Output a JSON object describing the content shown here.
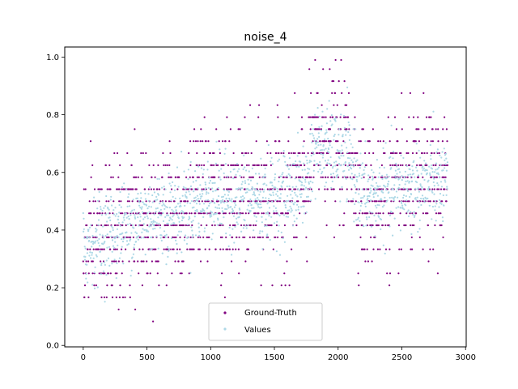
{
  "chart_data": {
    "type": "scatter",
    "title": "noise_4",
    "xlabel": "",
    "ylabel": "",
    "xlim": [
      -145,
      3005
    ],
    "ylim": [
      -0.005,
      1.035
    ],
    "xticks": [
      0,
      500,
      1000,
      1500,
      2000,
      2500,
      3000
    ],
    "xtick_labels": [
      "0",
      "500",
      "1000",
      "1500",
      "2000",
      "2500",
      "3000"
    ],
    "yticks": [
      0.0,
      0.2,
      0.4,
      0.6,
      0.8,
      1.0
    ],
    "ytick_labels": [
      "0.0",
      "0.2",
      "0.4",
      "0.6",
      "0.8",
      "1.0"
    ],
    "grid": false,
    "legend_position": "lower-center",
    "n_points": 2860,
    "series": [
      {
        "name": "Ground-Truth",
        "color": "#800080",
        "trend_x": [
          0,
          100,
          200,
          300,
          400,
          500,
          600,
          700,
          800,
          900,
          1000,
          1100,
          1200,
          1300,
          1400,
          1500,
          1600,
          1700,
          1760,
          1800,
          1900,
          2000,
          2100,
          2150,
          2200,
          2300,
          2400,
          2500,
          2600,
          2700,
          2800,
          2860
        ],
        "trend_y": [
          0.33,
          0.37,
          0.38,
          0.4,
          0.43,
          0.45,
          0.47,
          0.46,
          0.47,
          0.5,
          0.52,
          0.51,
          0.5,
          0.51,
          0.5,
          0.52,
          0.53,
          0.55,
          0.56,
          0.7,
          0.7,
          0.68,
          0.66,
          0.58,
          0.5,
          0.51,
          0.52,
          0.53,
          0.55,
          0.56,
          0.56,
          0.56
        ],
        "spread": 0.12
      },
      {
        "name": "Values",
        "color": "#add8e6",
        "trend_x": [
          0,
          100,
          200,
          300,
          400,
          500,
          600,
          700,
          800,
          900,
          1000,
          1100,
          1200,
          1300,
          1400,
          1500,
          1600,
          1700,
          1760,
          1800,
          1900,
          2000,
          2100,
          2150,
          2200,
          2300,
          2400,
          2500,
          2600,
          2700,
          2800,
          2860
        ],
        "trend_y": [
          0.34,
          0.37,
          0.39,
          0.41,
          0.43,
          0.45,
          0.46,
          0.46,
          0.48,
          0.5,
          0.52,
          0.51,
          0.5,
          0.51,
          0.5,
          0.52,
          0.53,
          0.55,
          0.57,
          0.68,
          0.68,
          0.66,
          0.64,
          0.57,
          0.51,
          0.52,
          0.53,
          0.54,
          0.55,
          0.56,
          0.56,
          0.56
        ],
        "spread": 0.07
      }
    ]
  }
}
